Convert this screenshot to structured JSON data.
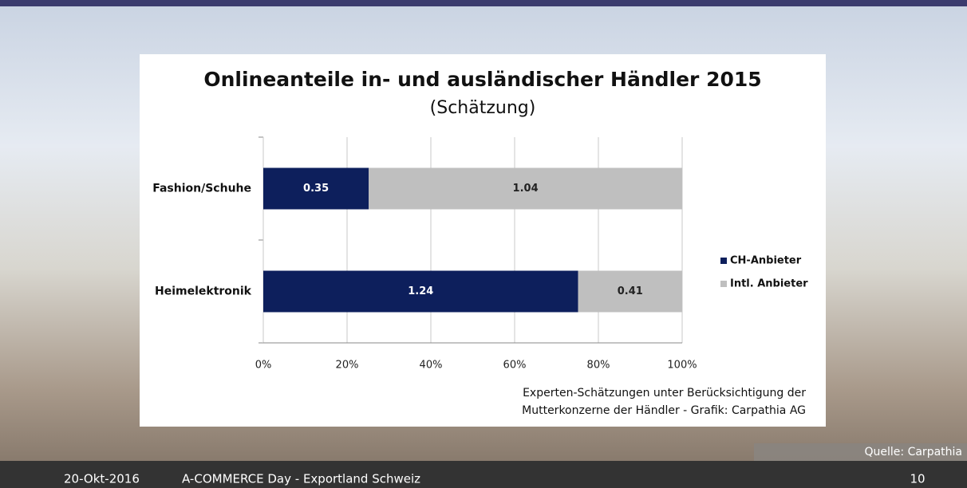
{
  "chart_data": {
    "type": "stacked_percent_bar",
    "orientation": "horizontal",
    "title": "Onlineanteile in- und ausländischer Händler 2015",
    "subtitle": "(Schätzung)",
    "categories": [
      "Fashion/Schuhe",
      "Heimelektronik"
    ],
    "series": [
      {
        "name": "CH-Anbieter",
        "color": "#0d1f5c",
        "values": [
          0.35,
          1.24
        ]
      },
      {
        "name": "Intl. Anbieter",
        "color": "#bfbfbf",
        "values": [
          1.04,
          0.41
        ]
      }
    ],
    "xlim": [
      0,
      100
    ],
    "xticks": [
      {
        "value": 0,
        "label": "0%"
      },
      {
        "value": 20,
        "label": "20%"
      },
      {
        "value": 40,
        "label": "40%"
      },
      {
        "value": 60,
        "label": "60%"
      },
      {
        "value": 80,
        "label": "80%"
      },
      {
        "value": 100,
        "label": "100%"
      }
    ],
    "grid": true,
    "legend": "right",
    "note": [
      "Experten-Schätzungen unter Berücksichtigung der",
      "Mutterkonzerne der Händler - Grafik: Carpathia AG"
    ]
  },
  "source": "Quelle: Carpathia",
  "footer": {
    "date": "20-Okt-2016",
    "event": "A-COMMERCE Day - Exportland Schweiz",
    "page": "10"
  }
}
